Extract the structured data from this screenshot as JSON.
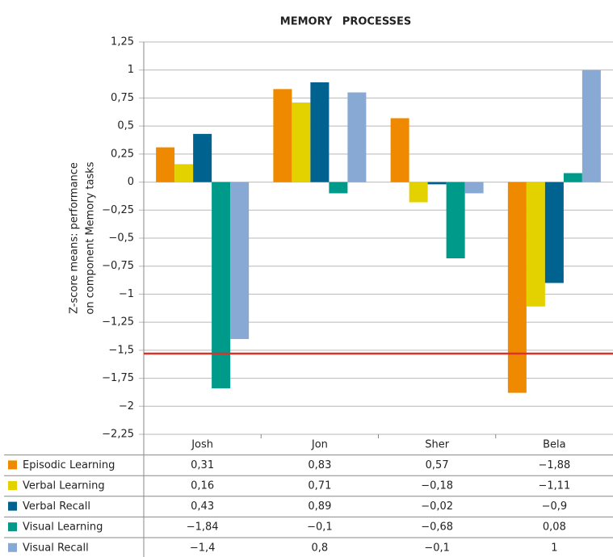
{
  "chart_data": {
    "type": "bar",
    "title": "MEMORY PROCESSES",
    "y_label_lines": [
      "Z-score means: performance",
      "on component Memory tasks"
    ],
    "categories": [
      "Josh",
      "Jon",
      "Sher",
      "Bela"
    ],
    "series": [
      {
        "name": "Episodic Learning",
        "color": "#ef8a00",
        "values": [
          0.31,
          0.83,
          0.57,
          -1.88
        ],
        "value_labels": [
          "0,31",
          "0,83",
          "0,57",
          "−1,88"
        ]
      },
      {
        "name": "Verbal Learning",
        "color": "#e3d200",
        "values": [
          0.16,
          0.71,
          -0.18,
          -1.11
        ],
        "value_labels": [
          "0,16",
          "0,71",
          "−0,18",
          "−1,11"
        ]
      },
      {
        "name": "Verbal Recall",
        "color": "#00628f",
        "values": [
          0.43,
          0.89,
          -0.02,
          -0.9
        ],
        "value_labels": [
          "0,43",
          "0,89",
          "−0,02",
          "−0,9"
        ]
      },
      {
        "name": "Visual Learning",
        "color": "#009a8a",
        "values": [
          -1.84,
          -0.1,
          -0.68,
          0.08
        ],
        "value_labels": [
          "−1,84",
          "−0,1",
          "−0,68",
          "0,08"
        ]
      },
      {
        "name": "Visual Recall",
        "color": "#88a9d3",
        "values": [
          -1.4,
          0.8,
          -0.1,
          1
        ],
        "value_labels": [
          "−1,4",
          "0,8",
          "−0,1",
          "1"
        ]
      }
    ],
    "ylim": [
      -2.25,
      1.25
    ],
    "yticks": [
      {
        "value": 1.25,
        "label": "1,25"
      },
      1,
      {
        "value": 0.75,
        "label": "0,75"
      },
      {
        "value": 0.5,
        "label": "0,5"
      },
      {
        "value": 0.25,
        "label": "0,25"
      },
      0,
      {
        "value": -0.25,
        "label": "−0,25"
      },
      {
        "value": -0.5,
        "label": "−0,5"
      },
      {
        "value": -0.75,
        "label": "−0,75"
      },
      {
        "value": -1,
        "label": "−1"
      },
      {
        "value": -1.25,
        "label": "−1,25"
      },
      {
        "value": -1.5,
        "label": "−1,5"
      },
      {
        "value": -1.75,
        "label": "−1,75"
      },
      {
        "value": -2,
        "label": "−2"
      },
      {
        "value": -2.25,
        "label": "−2,25"
      }
    ],
    "grid": true,
    "reference_line": {
      "value": -1.53,
      "color": "#d9332a"
    }
  }
}
